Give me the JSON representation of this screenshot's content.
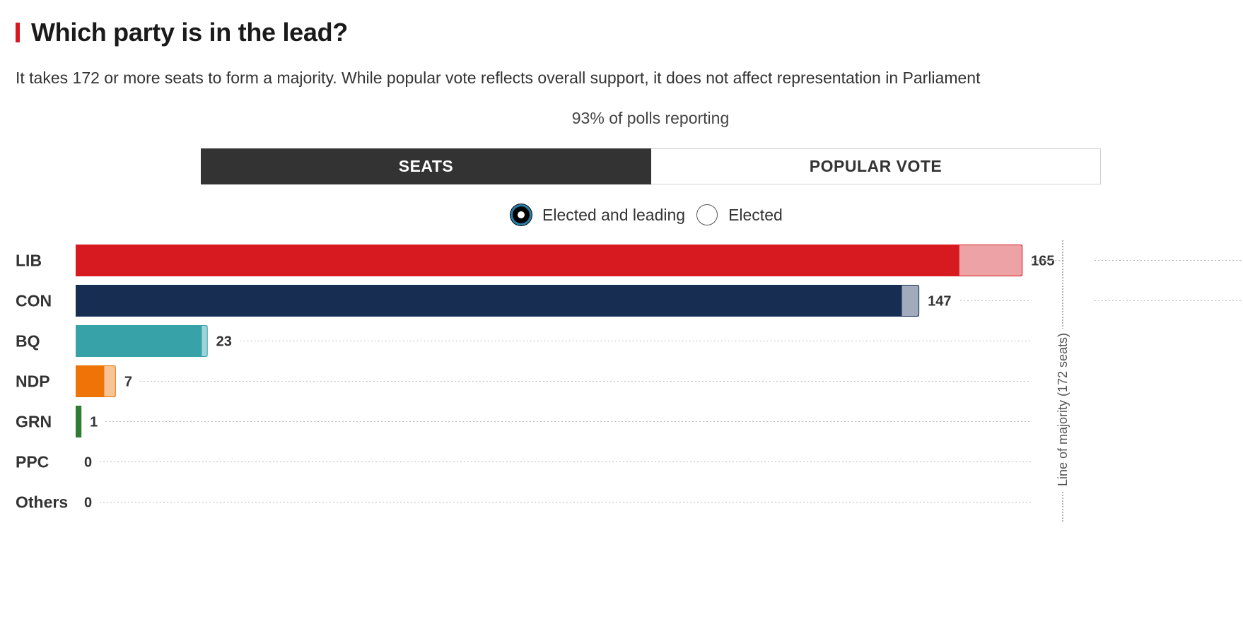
{
  "header": {
    "title": "Which party is in the lead?",
    "subtitle": "It takes 172 or more seats to form a majority. While popular vote reflects overall support, it does not affect representation in Parliament",
    "reporting": "93% of polls reporting"
  },
  "tabs": [
    {
      "label": "SEATS",
      "active": true
    },
    {
      "label": "POPULAR VOTE",
      "active": false
    }
  ],
  "radios": [
    {
      "label": "Elected and leading",
      "selected": true
    },
    {
      "label": "Elected",
      "selected": false
    }
  ],
  "chart_data": {
    "type": "bar",
    "orientation": "horizontal",
    "stacked": true,
    "categories": [
      "LIB",
      "CON",
      "BQ",
      "NDP",
      "GRN",
      "PPC",
      "Others"
    ],
    "series": [
      {
        "values": [
          154,
          144,
          22,
          5,
          1,
          0,
          0
        ]
      },
      {
        "values": [
          11,
          3,
          1,
          2,
          0,
          0,
          0
        ]
      }
    ],
    "totals": [
      "165",
      "147",
      "23",
      "7",
      "1",
      "0",
      "0"
    ],
    "colors": {
      "LIB": {
        "elected": "#d71920",
        "leading": "#eda2a6",
        "border": "#d71920"
      },
      "CON": {
        "elected": "#172e52",
        "leading": "#a0abbb",
        "border": "#172e52"
      },
      "BQ": {
        "elected": "#37a2a8",
        "leading": "#9fd4d7",
        "border": "#37a2a8"
      },
      "NDP": {
        "elected": "#ee7407",
        "leading": "#f7c496",
        "border": "#ee7407"
      },
      "GRN": {
        "elected": "#2e7d32",
        "leading": "#9fc7a0",
        "border": "#2e7d32"
      },
      "PPC": {
        "elected": "#5b3f8c",
        "leading": "#c3b3dd",
        "border": "#5b3f8c"
      },
      "Others": {
        "elected": "#777777",
        "leading": "#cccccc",
        "border": "#777777"
      }
    },
    "majority": 172,
    "majority_label": "Line of majority (172 seats)",
    "xlim": [
      0,
      172
    ]
  }
}
